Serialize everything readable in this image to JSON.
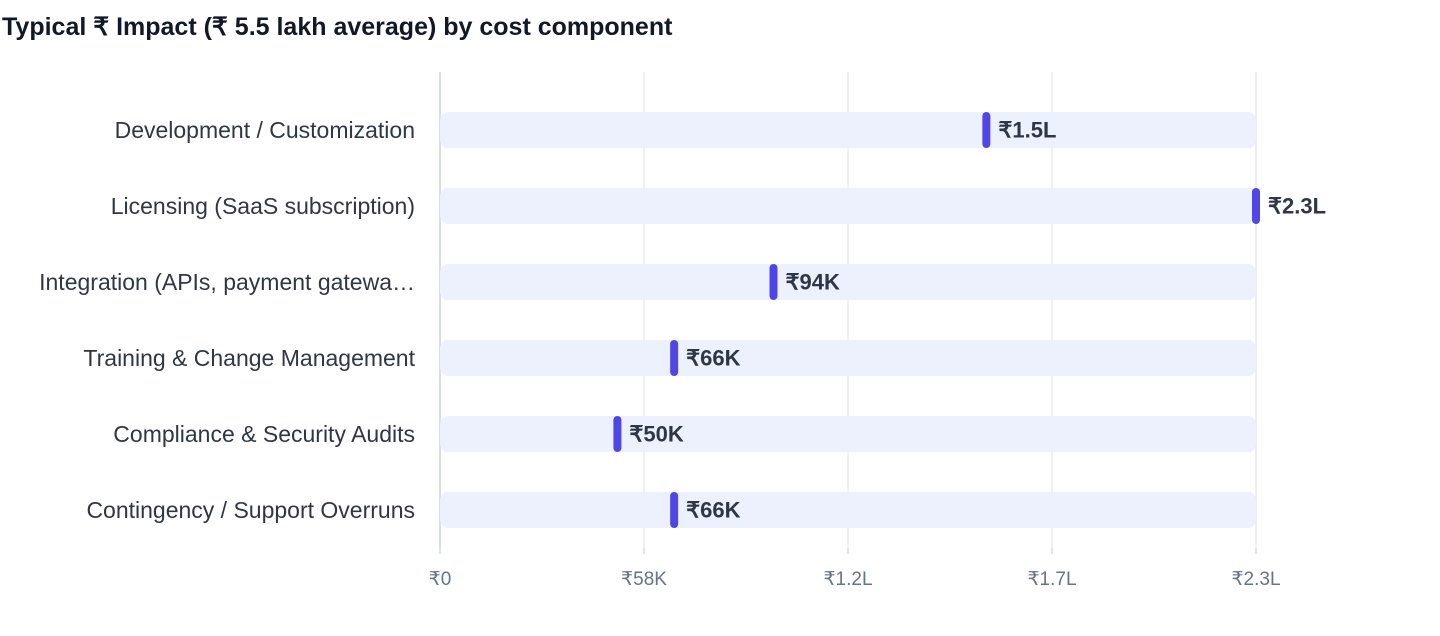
{
  "chart_data": {
    "type": "bar",
    "title": "Typical ₹ Impact (₹ 5.5 lakh average) by cost component",
    "categories": [
      "Development / Customization",
      "Licensing (SaaS subscription)",
      "Integration (APIs, payment gatewa…",
      "Training & Change Management",
      "Compliance & Security Audits",
      "Contingency / Support Overruns"
    ],
    "values": [
      154000,
      230000,
      94000,
      66000,
      50000,
      66000
    ],
    "data_labels": [
      "₹1.5L",
      "₹2.3L",
      "₹94K",
      "₹66K",
      "₹50K",
      "₹66K"
    ],
    "x_ticks": [
      0,
      57500,
      115000,
      172500,
      230000
    ],
    "x_tick_labels": [
      "₹0",
      "₹58K",
      "₹1.2L",
      "₹1.7L",
      "₹2.3L"
    ],
    "xlim": [
      0,
      230000
    ],
    "xlabel": "",
    "ylabel": "",
    "grid": true,
    "orientation": "horizontal",
    "colors": {
      "track": "#edf0fd",
      "marker": "#5046e5",
      "grid": "#e2e5ea",
      "axis": "#cbd2da"
    }
  }
}
